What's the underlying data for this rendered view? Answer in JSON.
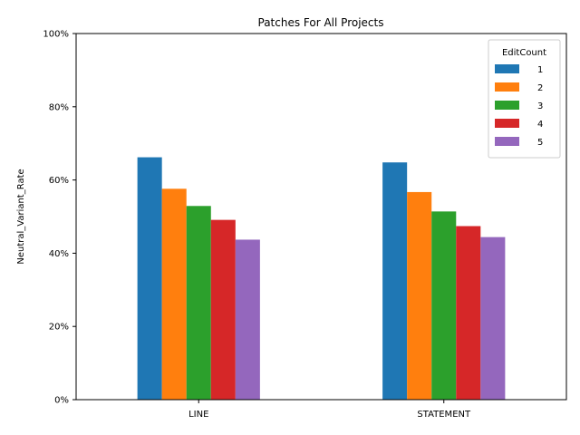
{
  "chart_data": {
    "type": "bar",
    "title": "Patches For All Projects",
    "xlabel": "",
    "ylabel": "Neutral_Variant_Rate",
    "categories": [
      "LINE",
      "STATEMENT"
    ],
    "ylim": [
      0,
      1
    ],
    "yticks": [
      0,
      0.2,
      0.4,
      0.6,
      0.8,
      1.0
    ],
    "ytick_labels": [
      "0%",
      "20%",
      "40%",
      "60%",
      "80%",
      "100%"
    ],
    "grid": false,
    "legend": {
      "title": "EditCount",
      "placement": "top-right"
    },
    "series": [
      {
        "name": "1",
        "color": "#1f77b4",
        "values": [
          0.662,
          0.648
        ]
      },
      {
        "name": "2",
        "color": "#ff7f0e",
        "values": [
          0.576,
          0.567
        ]
      },
      {
        "name": "3",
        "color": "#2ca02c",
        "values": [
          0.529,
          0.514
        ]
      },
      {
        "name": "4",
        "color": "#d62728",
        "values": [
          0.491,
          0.474
        ]
      },
      {
        "name": "5",
        "color": "#9467bd",
        "values": [
          0.437,
          0.444
        ]
      }
    ]
  }
}
